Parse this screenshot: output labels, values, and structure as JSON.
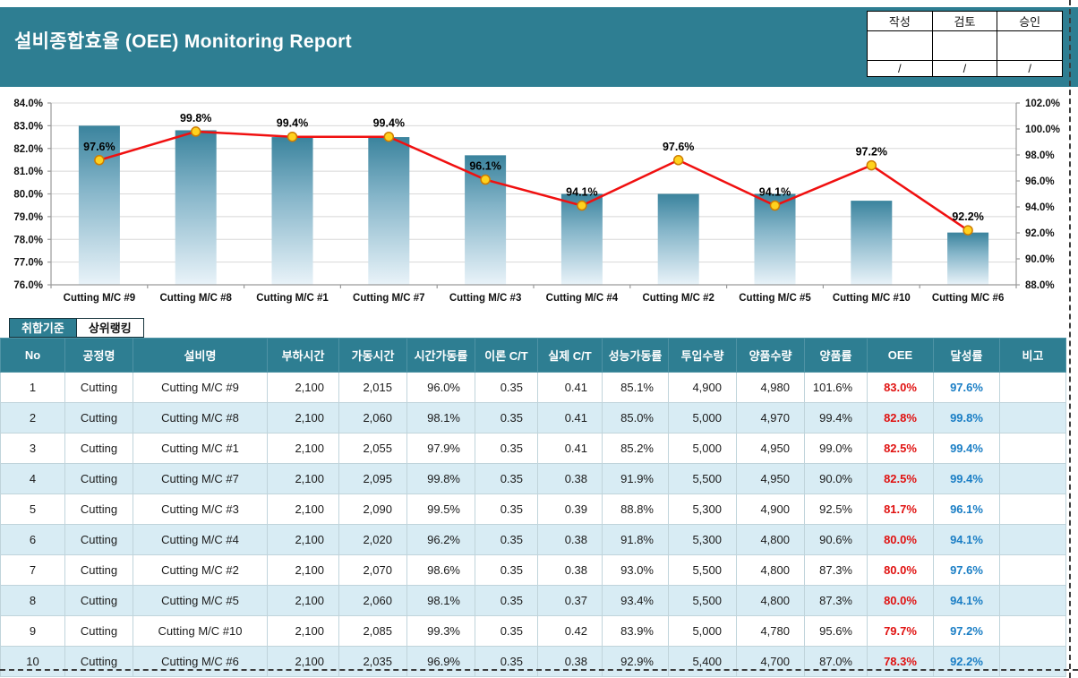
{
  "page": {
    "title": "설비종합효율 (OEE) Monitoring Report"
  },
  "approval": {
    "headers": [
      "작성",
      "검토",
      "승인"
    ],
    "sign_date_placeholder": "/"
  },
  "tabs": [
    {
      "label": "취합기준",
      "active": true
    },
    {
      "label": "상위랭킹",
      "active": false
    }
  ],
  "chart_data": {
    "type": "bar+line",
    "categories": [
      "Cutting M/C #9",
      "Cutting M/C #8",
      "Cutting M/C #1",
      "Cutting M/C #7",
      "Cutting M/C #3",
      "Cutting M/C #4",
      "Cutting M/C #2",
      "Cutting M/C #5",
      "Cutting M/C #10",
      "Cutting M/C #6"
    ],
    "series": [
      {
        "name": "OEE",
        "type": "bar",
        "axis": "left",
        "values": [
          83.0,
          82.8,
          82.5,
          82.5,
          81.7,
          80.0,
          80.0,
          80.0,
          79.7,
          78.3
        ]
      },
      {
        "name": "달성률",
        "type": "line",
        "axis": "right",
        "values": [
          97.6,
          99.8,
          99.4,
          99.4,
          96.1,
          94.1,
          97.6,
          94.1,
          97.2,
          92.2
        ],
        "data_labels": [
          "97.6%",
          "99.8%",
          "99.4%",
          "99.4%",
          "96.1%",
          "94.1%",
          "97.6%",
          "94.1%",
          "97.2%",
          "92.2%"
        ]
      }
    ],
    "left_axis": {
      "min": 76,
      "max": 84,
      "step": 1,
      "tick_labels": [
        "76.0%",
        "77.0%",
        "78.0%",
        "79.0%",
        "80.0%",
        "81.0%",
        "82.0%",
        "83.0%",
        "84.0%"
      ]
    },
    "right_axis": {
      "min": 88,
      "max": 102,
      "step": 2,
      "tick_labels": [
        "88.0%",
        "90.0%",
        "92.0%",
        "94.0%",
        "96.0%",
        "98.0%",
        "100.0%",
        "102.0%"
      ]
    },
    "grid": true,
    "legend": "none",
    "colors": {
      "bar_top": "#3A839D",
      "bar_mid": "#85B5C9",
      "bar_bottom": "#E9F3F9",
      "line": "#F01010",
      "marker_fill": "#FFD21E",
      "marker_stroke": "#CE7C00",
      "grid": "#D8D8D8",
      "axis": "#9A9A9A",
      "label_text": "#000000"
    }
  },
  "table": {
    "headers": [
      "No",
      "공정명",
      "설비명",
      "부하시간",
      "가동시간",
      "시간가동률",
      "이론 C/T",
      "실제 C/T",
      "성능가동률",
      "투입수량",
      "양품수량",
      "양품률",
      "OEE",
      "달성률",
      "비고"
    ],
    "rows": [
      [
        "1",
        "Cutting",
        "Cutting M/C #9",
        "2,100",
        "2,015",
        "96.0%",
        "0.35",
        "0.41",
        "85.1%",
        "4,900",
        "4,980",
        "101.6%",
        "83.0%",
        "97.6%",
        ""
      ],
      [
        "2",
        "Cutting",
        "Cutting M/C #8",
        "2,100",
        "2,060",
        "98.1%",
        "0.35",
        "0.41",
        "85.0%",
        "5,000",
        "4,970",
        "99.4%",
        "82.8%",
        "99.8%",
        ""
      ],
      [
        "3",
        "Cutting",
        "Cutting M/C #1",
        "2,100",
        "2,055",
        "97.9%",
        "0.35",
        "0.41",
        "85.2%",
        "5,000",
        "4,950",
        "99.0%",
        "82.5%",
        "99.4%",
        ""
      ],
      [
        "4",
        "Cutting",
        "Cutting M/C #7",
        "2,100",
        "2,095",
        "99.8%",
        "0.35",
        "0.38",
        "91.9%",
        "5,500",
        "4,950",
        "90.0%",
        "82.5%",
        "99.4%",
        ""
      ],
      [
        "5",
        "Cutting",
        "Cutting M/C #3",
        "2,100",
        "2,090",
        "99.5%",
        "0.35",
        "0.39",
        "88.8%",
        "5,300",
        "4,900",
        "92.5%",
        "81.7%",
        "96.1%",
        ""
      ],
      [
        "6",
        "Cutting",
        "Cutting M/C #4",
        "2,100",
        "2,020",
        "96.2%",
        "0.35",
        "0.38",
        "91.8%",
        "5,300",
        "4,800",
        "90.6%",
        "80.0%",
        "94.1%",
        ""
      ],
      [
        "7",
        "Cutting",
        "Cutting M/C #2",
        "2,100",
        "2,070",
        "98.6%",
        "0.35",
        "0.38",
        "93.0%",
        "5,500",
        "4,800",
        "87.3%",
        "80.0%",
        "97.6%",
        ""
      ],
      [
        "8",
        "Cutting",
        "Cutting M/C #5",
        "2,100",
        "2,060",
        "98.1%",
        "0.35",
        "0.37",
        "93.4%",
        "5,500",
        "4,800",
        "87.3%",
        "80.0%",
        "94.1%",
        ""
      ],
      [
        "9",
        "Cutting",
        "Cutting M/C #10",
        "2,100",
        "2,085",
        "99.3%",
        "0.35",
        "0.42",
        "83.9%",
        "5,000",
        "4,780",
        "95.6%",
        "79.7%",
        "97.2%",
        ""
      ],
      [
        "10",
        "Cutting",
        "Cutting M/C #6",
        "2,100",
        "2,035",
        "96.9%",
        "0.35",
        "0.38",
        "92.9%",
        "5,400",
        "4,700",
        "87.0%",
        "78.3%",
        "92.2%",
        ""
      ]
    ]
  }
}
